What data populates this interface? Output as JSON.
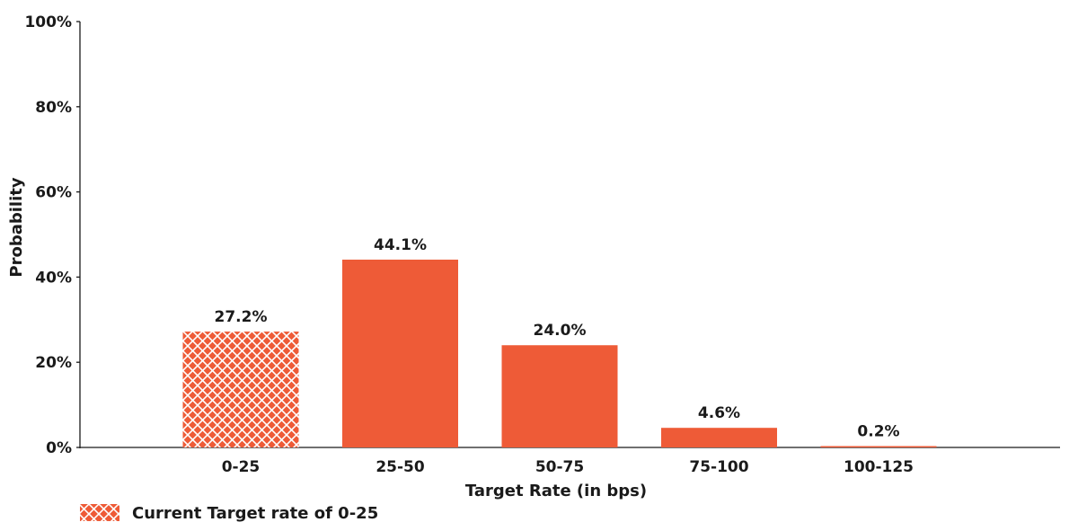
{
  "chart_data": {
    "type": "bar",
    "title": "",
    "xlabel": "Target Rate (in bps)",
    "ylabel": "Probability",
    "categories": [
      "0-25",
      "25-50",
      "50-75",
      "75-100",
      "100-125"
    ],
    "values": [
      27.2,
      44.1,
      24.0,
      4.6,
      0.2
    ],
    "data_labels": [
      "27.2%",
      "44.1%",
      "24.0%",
      "4.6%",
      "0.2%"
    ],
    "ylim": [
      0,
      100
    ],
    "yticks": [
      0,
      20,
      40,
      60,
      80,
      100
    ],
    "ytick_labels": [
      "0%",
      "20%",
      "40%",
      "60%",
      "80%",
      "100%"
    ],
    "grid": false,
    "highlight_index": 0,
    "legend": {
      "placement": "bottom-left",
      "entries": [
        {
          "label": "Current Target rate of 0-25",
          "pattern": "crosshatch"
        }
      ]
    },
    "colors": {
      "bar": "#ee5b37",
      "hatch": "#ffffff",
      "axis": "#1a1a1a"
    }
  }
}
